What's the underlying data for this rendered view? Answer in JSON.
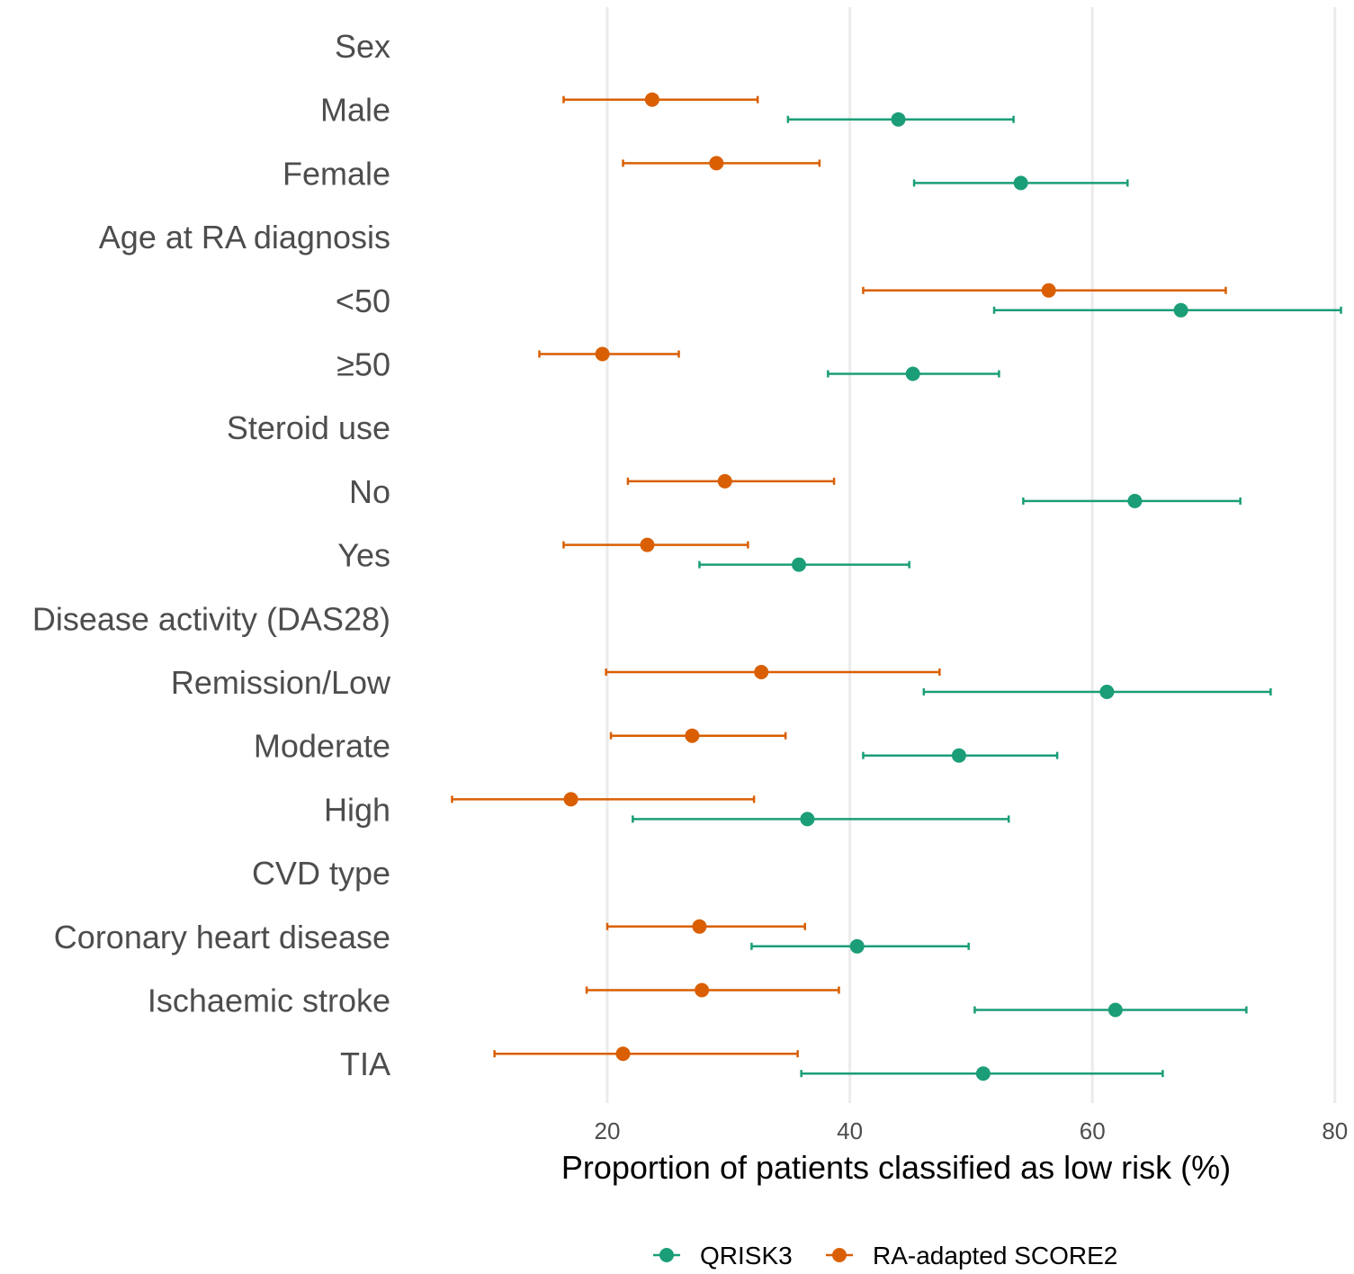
{
  "chart_data": {
    "type": "forest",
    "xlabel": "Proportion of patients classified as low risk (%)",
    "xlim": [
      10,
      81
    ],
    "xticks": [
      20,
      40,
      60,
      80
    ],
    "grid": "vertical major",
    "legend_position": "bottom",
    "series": [
      {
        "name": "QRISK3",
        "color": "#1b9e77"
      },
      {
        "name": "RA-adapted SCORE2",
        "color": "#d95f02"
      }
    ],
    "rows": [
      {
        "label": "Sex",
        "header": true
      },
      {
        "label": "Male",
        "QRISK3": [
          44.0,
          34.9,
          53.5
        ],
        "RA-adapted SCORE2": [
          23.7,
          16.4,
          32.4
        ]
      },
      {
        "label": "Female",
        "QRISK3": [
          54.1,
          45.3,
          62.9
        ],
        "RA-adapted SCORE2": [
          29.0,
          21.3,
          37.5
        ]
      },
      {
        "label": "Age at RA diagnosis",
        "header": true
      },
      {
        "label": "<50",
        "QRISK3": [
          67.3,
          51.9,
          80.5
        ],
        "RA-adapted SCORE2": [
          56.4,
          41.1,
          71.0
        ]
      },
      {
        "label": "≥50",
        "QRISK3": [
          45.2,
          38.2,
          52.3
        ],
        "RA-adapted SCORE2": [
          19.6,
          14.4,
          25.9
        ]
      },
      {
        "label": "Steroid use",
        "header": true
      },
      {
        "label": "No",
        "QRISK3": [
          63.5,
          54.3,
          72.2
        ],
        "RA-adapted SCORE2": [
          29.7,
          21.7,
          38.7
        ]
      },
      {
        "label": "Yes",
        "QRISK3": [
          35.8,
          27.6,
          44.9
        ],
        "RA-adapted SCORE2": [
          23.3,
          16.4,
          31.6
        ]
      },
      {
        "label": "Disease activity (DAS28)",
        "header": true
      },
      {
        "label": "Remission/Low",
        "QRISK3": [
          61.2,
          46.1,
          74.7
        ],
        "RA-adapted SCORE2": [
          32.7,
          19.9,
          47.4
        ]
      },
      {
        "label": "Moderate",
        "QRISK3": [
          49.0,
          41.1,
          57.1
        ],
        "RA-adapted SCORE2": [
          27.0,
          20.3,
          34.7
        ]
      },
      {
        "label": "High",
        "QRISK3": [
          36.5,
          22.1,
          53.1
        ],
        "RA-adapted SCORE2": [
          17.0,
          7.2,
          32.1
        ]
      },
      {
        "label": "CVD type",
        "header": true
      },
      {
        "label": "Coronary heart disease",
        "QRISK3": [
          40.6,
          31.9,
          49.8
        ],
        "RA-adapted SCORE2": [
          27.6,
          20.0,
          36.3
        ]
      },
      {
        "label": "Ischaemic stroke",
        "QRISK3": [
          61.9,
          50.3,
          72.7
        ],
        "RA-adapted SCORE2": [
          27.8,
          18.3,
          39.1
        ]
      },
      {
        "label": "TIA",
        "QRISK3": [
          51.0,
          36.0,
          65.8
        ],
        "RA-adapted SCORE2": [
          21.3,
          10.7,
          35.7
        ]
      }
    ]
  }
}
